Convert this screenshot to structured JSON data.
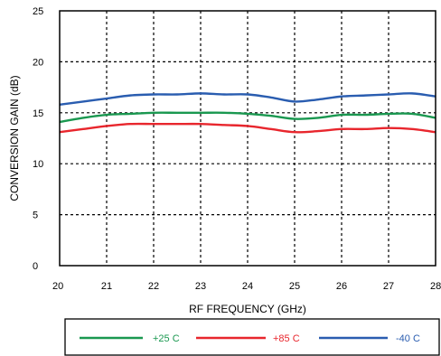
{
  "chart_data": {
    "type": "line",
    "xlabel": "RF FREQUENCY (GHz)",
    "ylabel": "CONVERSION GAIN (dB)",
    "xlim": [
      20,
      28
    ],
    "ylim": [
      0,
      25
    ],
    "x_ticks": [
      "20",
      "21",
      "22",
      "23",
      "24",
      "25",
      "26",
      "27",
      "28"
    ],
    "y_ticks": [
      "0",
      "5",
      "10",
      "15",
      "20",
      "25"
    ],
    "grid": true,
    "legend_position": "bottom",
    "series": [
      {
        "name": "+25 C",
        "color": "#1a9850",
        "x": [
          20,
          20.5,
          21,
          21.5,
          22,
          22.5,
          23,
          23.5,
          24,
          24.5,
          25,
          25.5,
          26,
          26.5,
          27,
          27.5,
          28
        ],
        "y": [
          14.1,
          14.5,
          14.8,
          14.9,
          15.0,
          15.0,
          15.0,
          15.0,
          14.9,
          14.7,
          14.4,
          14.5,
          14.8,
          14.8,
          14.9,
          14.9,
          14.5
        ]
      },
      {
        "name": "+85 C",
        "color": "#e8262d",
        "x": [
          20,
          20.5,
          21,
          21.5,
          22,
          22.5,
          23,
          23.5,
          24,
          24.5,
          25,
          25.5,
          26,
          26.5,
          27,
          27.5,
          28
        ],
        "y": [
          13.1,
          13.4,
          13.7,
          13.9,
          13.9,
          13.9,
          13.9,
          13.8,
          13.7,
          13.4,
          13.1,
          13.2,
          13.4,
          13.4,
          13.5,
          13.4,
          13.1
        ]
      },
      {
        "name": "-40 C",
        "color": "#2a5db0",
        "x": [
          20,
          20.5,
          21,
          21.5,
          22,
          22.5,
          23,
          23.5,
          24,
          24.5,
          25,
          25.5,
          26,
          26.5,
          27,
          27.5,
          28
        ],
        "y": [
          15.8,
          16.1,
          16.4,
          16.7,
          16.8,
          16.8,
          16.9,
          16.8,
          16.8,
          16.5,
          16.1,
          16.3,
          16.6,
          16.7,
          16.8,
          16.9,
          16.6
        ]
      }
    ]
  }
}
